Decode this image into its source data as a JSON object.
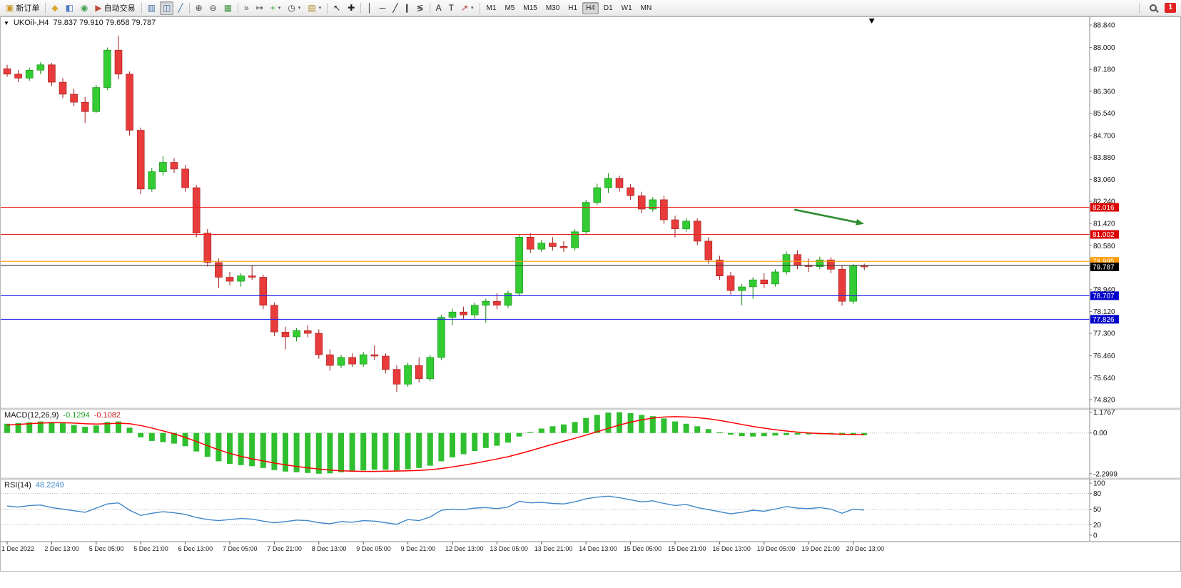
{
  "toolbar": {
    "notification_badge": "1",
    "left_items": [
      {
        "type": "button",
        "name": "new-order-button",
        "icon_name": "new-order-icon",
        "glyph": "▣",
        "glyph_color": "#c9972b",
        "label": "新订单"
      },
      {
        "type": "sep"
      },
      {
        "type": "button",
        "name": "market-watch-button",
        "icon_name": "market-watch-icon",
        "glyph": "◆",
        "glyph_color": "#d9a92f"
      },
      {
        "type": "button",
        "name": "data-window-button",
        "icon_name": "data-window-icon",
        "glyph": "◧",
        "glyph_color": "#4d79bd"
      },
      {
        "type": "button",
        "name": "navigator-button",
        "icon_name": "navigator-icon",
        "glyph": "◉",
        "glyph_color": "#3e9e4f"
      },
      {
        "type": "button",
        "name": "auto-trading-button",
        "icon_name": "auto-trading-icon",
        "glyph": "▶",
        "glyph_color": "#bf4a3e",
        "label": "自动交易"
      },
      {
        "type": "sep"
      },
      {
        "type": "button",
        "name": "bar-chart-button",
        "icon_name": "bar-chart-icon",
        "glyph": "▥",
        "glyph_color": "#3a6ea5"
      },
      {
        "type": "button",
        "name": "candlestick-chart-button",
        "icon_name": "candlestick-icon",
        "glyph": "◫",
        "glyph_color": "#3a6ea5",
        "active": true
      },
      {
        "type": "button",
        "name": "line-chart-button",
        "icon_name": "line-chart-icon",
        "glyph": "╱",
        "glyph_color": "#3a6ea5"
      },
      {
        "type": "sep"
      },
      {
        "type": "button",
        "name": "zoom-in-button",
        "icon_name": "zoom-in-icon",
        "glyph": "⊕",
        "glyph_color": "#444444"
      },
      {
        "type": "button",
        "name": "zoom-out-button",
        "icon_name": "zoom-out-icon",
        "glyph": "⊖",
        "glyph_color": "#444444"
      },
      {
        "type": "button",
        "name": "tile-windows-button",
        "icon_name": "tile-windows-icon",
        "glyph": "▦",
        "glyph_color": "#3f8f3f"
      },
      {
        "type": "sep"
      },
      {
        "type": "button",
        "name": "auto-scroll-button",
        "icon_name": "auto-scroll-icon",
        "glyph": "»",
        "glyph_color": "#444444"
      },
      {
        "type": "button",
        "name": "chart-shift-button",
        "icon_name": "chart-shift-icon",
        "glyph": "↦",
        "glyph_color": "#444444"
      },
      {
        "type": "button",
        "name": "indicators-button",
        "icon_name": "indicators-icon",
        "glyph": "+",
        "glyph_color": "#2f9e2f",
        "chevron": true
      },
      {
        "type": "button",
        "name": "periods-button",
        "icon_name": "periods-icon",
        "glyph": "◷",
        "glyph_color": "#444444",
        "chevron": true
      },
      {
        "type": "button",
        "name": "templates-button",
        "icon_name": "templates-icon",
        "glyph": "▤",
        "glyph_color": "#b58926",
        "chevron": true
      },
      {
        "type": "sep"
      },
      {
        "type": "button",
        "name": "cursor-button",
        "icon_name": "cursor-icon",
        "glyph": "↖",
        "glyph_color": "#222222"
      },
      {
        "type": "button",
        "name": "crosshair-button",
        "icon_name": "crosshair-icon",
        "glyph": "✚",
        "glyph_color": "#222222"
      },
      {
        "type": "sep"
      },
      {
        "type": "button",
        "name": "vertical-line-button",
        "icon_name": "vertical-line-icon",
        "glyph": "│",
        "glyph_color": "#222222"
      },
      {
        "type": "button",
        "name": "horizontal-line-button",
        "icon_name": "horizontal-line-icon",
        "glyph": "─",
        "glyph_color": "#222222"
      },
      {
        "type": "button",
        "name": "trendline-button",
        "icon_name": "trendline-icon",
        "glyph": "╱",
        "glyph_color": "#222222"
      },
      {
        "type": "button",
        "name": "channel-button",
        "icon_name": "channel-icon",
        "glyph": "∥",
        "glyph_color": "#222222"
      },
      {
        "type": "button",
        "name": "fibonacci-button",
        "icon_name": "fibonacci-icon",
        "glyph": "≶",
        "glyph_color": "#222222"
      },
      {
        "type": "sep"
      },
      {
        "type": "button",
        "name": "text-button",
        "icon_name": "text-icon",
        "glyph": "A",
        "glyph_color": "#222222"
      },
      {
        "type": "button",
        "name": "text-label-button",
        "icon_name": "text-label-icon",
        "glyph": "T",
        "glyph_color": "#222222"
      },
      {
        "type": "button",
        "name": "arrows-button",
        "icon_name": "arrows-icon",
        "glyph": "↗",
        "glyph_color": "#b03030",
        "chevron": true
      },
      {
        "type": "sep"
      }
    ],
    "timeframes": [
      {
        "label": "M1"
      },
      {
        "label": "M5"
      },
      {
        "label": "M15"
      },
      {
        "label": "M30"
      },
      {
        "label": "H1"
      },
      {
        "label": "H4",
        "active": true
      },
      {
        "label": "D1"
      },
      {
        "label": "W1"
      },
      {
        "label": "MN"
      }
    ]
  },
  "chart_data": [
    {
      "type": "candlestick",
      "title": "UKOil-,H4",
      "ohlc_text": "79.837 79.910 79.658 79.787",
      "ylim": [
        74.82,
        88.84
      ],
      "y_ticks": [
        "88.840",
        "88.000",
        "87.180",
        "86.360",
        "85.540",
        "84.700",
        "83.880",
        "83.060",
        "82.240",
        "81.420",
        "80.580",
        "79.760",
        "78.940",
        "78.120",
        "77.300",
        "76.460",
        "75.640",
        "74.820"
      ],
      "x_labels": [
        "1 Dec 2022",
        "2 Dec 13:00",
        "5 Dec 05:00",
        "5 Dec 21:00",
        "6 Dec 13:00",
        "7 Dec 05:00",
        "7 Dec 21:00",
        "8 Dec 13:00",
        "9 Dec 05:00",
        "9 Dec 21:00",
        "12 Dec 13:00",
        "13 Dec 05:00",
        "13 Dec 21:00",
        "14 Dec 13:00",
        "15 Dec 05:00",
        "15 Dec 21:00",
        "16 Dec 13:00",
        "19 Dec 05:00",
        "19 Dec 21:00",
        "20 Dec 13:00"
      ],
      "candles": [
        [
          87.2,
          87.35,
          86.9,
          87.0
        ],
        [
          87.0,
          87.15,
          86.7,
          86.85
        ],
        [
          86.85,
          87.25,
          86.75,
          87.15
        ],
        [
          87.15,
          87.45,
          87.0,
          87.35
        ],
        [
          87.35,
          87.42,
          86.55,
          86.7
        ],
        [
          86.7,
          86.85,
          86.1,
          86.25
        ],
        [
          86.25,
          86.45,
          85.8,
          85.95
        ],
        [
          85.95,
          86.15,
          85.18,
          85.6
        ],
        [
          85.6,
          86.6,
          85.55,
          86.5
        ],
        [
          86.5,
          88.0,
          86.4,
          87.9
        ],
        [
          87.9,
          88.44,
          86.8,
          87.0
        ],
        [
          87.0,
          87.1,
          84.7,
          84.9
        ],
        [
          84.9,
          85.0,
          82.51,
          82.7
        ],
        [
          82.7,
          83.5,
          82.6,
          83.35
        ],
        [
          83.35,
          83.93,
          83.2,
          83.7
        ],
        [
          83.7,
          83.85,
          83.3,
          83.45
        ],
        [
          83.45,
          83.6,
          82.6,
          82.75
        ],
        [
          82.75,
          82.85,
          80.9,
          81.05
        ],
        [
          81.05,
          81.2,
          79.8,
          79.95
        ],
        [
          79.95,
          80.1,
          79.0,
          79.4
        ],
        [
          79.4,
          79.6,
          79.1,
          79.25
        ],
        [
          79.25,
          79.55,
          79.05,
          79.45
        ],
        [
          79.45,
          79.85,
          79.3,
          79.4
        ],
        [
          79.4,
          79.5,
          78.2,
          78.35
        ],
        [
          78.35,
          78.45,
          77.2,
          77.35
        ],
        [
          77.35,
          77.55,
          76.7,
          77.17
        ],
        [
          77.17,
          77.5,
          77.0,
          77.4
        ],
        [
          77.4,
          77.6,
          77.15,
          77.3
        ],
        [
          77.3,
          77.45,
          76.35,
          76.5
        ],
        [
          76.5,
          76.7,
          75.9,
          76.1
        ],
        [
          76.1,
          76.5,
          76.0,
          76.4
        ],
        [
          76.4,
          76.55,
          76.05,
          76.15
        ],
        [
          76.15,
          76.6,
          76.05,
          76.5
        ],
        [
          76.5,
          76.85,
          76.3,
          76.45
        ],
        [
          76.45,
          76.55,
          75.8,
          75.95
        ],
        [
          75.95,
          76.1,
          75.11,
          75.4
        ],
        [
          75.4,
          76.2,
          75.3,
          76.1
        ],
        [
          76.1,
          76.4,
          75.46,
          75.6
        ],
        [
          75.6,
          76.5,
          75.5,
          76.4
        ],
        [
          76.4,
          78.0,
          76.3,
          77.9
        ],
        [
          77.9,
          78.22,
          77.6,
          78.1
        ],
        [
          78.1,
          78.3,
          77.8,
          77.99
        ],
        [
          77.99,
          78.45,
          77.85,
          78.35
        ],
        [
          78.35,
          78.6,
          77.7,
          78.5
        ],
        [
          78.5,
          78.8,
          78.2,
          78.35
        ],
        [
          78.35,
          78.9,
          78.25,
          78.8
        ],
        [
          78.8,
          81.0,
          78.7,
          80.9
        ],
        [
          80.9,
          81.05,
          80.3,
          80.45
        ],
        [
          80.45,
          80.8,
          80.35,
          80.68
        ],
        [
          80.68,
          80.9,
          80.4,
          80.55
        ],
        [
          80.55,
          80.75,
          80.35,
          80.5
        ],
        [
          80.5,
          81.2,
          80.4,
          81.1
        ],
        [
          81.1,
          82.3,
          81.0,
          82.2
        ],
        [
          82.2,
          82.9,
          82.1,
          82.75
        ],
        [
          82.75,
          83.29,
          82.55,
          83.1
        ],
        [
          83.1,
          83.2,
          82.6,
          82.75
        ],
        [
          82.75,
          82.89,
          82.3,
          82.45
        ],
        [
          82.45,
          82.6,
          81.8,
          81.95
        ],
        [
          81.95,
          82.4,
          81.85,
          82.3
        ],
        [
          82.3,
          82.45,
          81.4,
          81.55
        ],
        [
          81.55,
          81.7,
          80.89,
          81.21
        ],
        [
          81.21,
          81.61,
          81.1,
          81.5
        ],
        [
          81.5,
          81.6,
          80.6,
          80.75
        ],
        [
          80.75,
          80.9,
          79.9,
          80.05
        ],
        [
          80.05,
          80.2,
          79.3,
          79.45
        ],
        [
          79.45,
          79.6,
          78.75,
          78.9
        ],
        [
          78.9,
          79.15,
          78.35,
          79.04
        ],
        [
          79.04,
          79.4,
          78.6,
          79.3
        ],
        [
          79.3,
          79.55,
          79.0,
          79.15
        ],
        [
          79.15,
          79.7,
          79.05,
          79.6
        ],
        [
          79.6,
          80.37,
          79.5,
          80.25
        ],
        [
          80.25,
          80.4,
          79.7,
          79.85
        ],
        [
          79.85,
          80.1,
          79.6,
          79.8
        ],
        [
          79.8,
          80.17,
          79.7,
          80.05
        ],
        [
          80.05,
          80.15,
          79.55,
          79.7
        ],
        [
          79.7,
          79.85,
          78.34,
          78.5
        ],
        [
          78.5,
          79.9,
          78.4,
          79.84
        ],
        [
          79.837,
          79.91,
          79.658,
          79.787
        ]
      ],
      "colors": {
        "bull": "#33cc33",
        "bull_border": "#0d8a0d",
        "bear": "#e83b3b",
        "bear_border": "#9e1b1b"
      },
      "hlines": [
        {
          "price": 82.016,
          "color": "#f02020",
          "label": "82.016",
          "label_bg": "#dd0000"
        },
        {
          "price": 81.002,
          "color": "#f02020",
          "label": "81.002",
          "label_bg": "#dd0000"
        },
        {
          "price": 79.995,
          "color": "#ff9900",
          "label": "79.995",
          "label_bg": "#ff9900"
        },
        {
          "price": 79.837,
          "color": "#3a3a3a",
          "label": "",
          "label_bg": ""
        },
        {
          "price": 78.707,
          "color": "#2222ee",
          "label": "78.707",
          "label_bg": "#0000cc"
        },
        {
          "price": 77.826,
          "color": "#2222ee",
          "label": "77.826",
          "label_bg": "#0000cc"
        }
      ],
      "current_price": {
        "price": 79.787,
        "label": "79.787",
        "label_bg": "#000000"
      },
      "arrow": {
        "x_frac_start": 0.729,
        "price_start": 81.93,
        "x_frac_end": 0.793,
        "price_end": 81.4,
        "color": "#2e8b2e"
      },
      "series_end_marker_frac": 0.8
    },
    {
      "type": "bar",
      "name": "MACD(12,26,9)",
      "value_main": "-0.1294",
      "value_signal": "-0.1082",
      "y_ticks": [
        "1.1767",
        "0.00",
        "-2.2999"
      ],
      "ylim": [
        -2.2999,
        1.1767
      ],
      "histogram": [
        0.52,
        0.56,
        0.6,
        0.65,
        0.62,
        0.55,
        0.45,
        0.35,
        0.42,
        0.62,
        0.65,
        0.3,
        -0.25,
        -0.45,
        -0.52,
        -0.6,
        -0.75,
        -1.05,
        -1.35,
        -1.6,
        -1.75,
        -1.82,
        -1.88,
        -1.98,
        -2.1,
        -2.18,
        -2.22,
        -2.26,
        -2.3,
        -2.28,
        -2.22,
        -2.18,
        -2.12,
        -2.08,
        -2.08,
        -2.12,
        -2.05,
        -1.98,
        -1.85,
        -1.6,
        -1.38,
        -1.2,
        -1.02,
        -0.85,
        -0.72,
        -0.55,
        -0.2,
        0.05,
        0.25,
        0.38,
        0.48,
        0.62,
        0.85,
        1.02,
        1.15,
        1.1767,
        1.12,
        1.02,
        0.95,
        0.82,
        0.65,
        0.52,
        0.38,
        0.22,
        0.05,
        -0.1,
        -0.18,
        -0.2,
        -0.18,
        -0.15,
        -0.12,
        -0.1,
        -0.08,
        -0.07,
        -0.08,
        -0.12,
        -0.13,
        -0.1294
      ],
      "signal": [
        0.45,
        0.48,
        0.52,
        0.56,
        0.58,
        0.58,
        0.56,
        0.52,
        0.5,
        0.52,
        0.55,
        0.52,
        0.42,
        0.28,
        0.12,
        -0.05,
        -0.25,
        -0.48,
        -0.72,
        -0.95,
        -1.15,
        -1.32,
        -1.46,
        -1.58,
        -1.7,
        -1.8,
        -1.89,
        -1.97,
        -2.04,
        -2.1,
        -2.14,
        -2.16,
        -2.17,
        -2.17,
        -2.16,
        -2.15,
        -2.14,
        -2.12,
        -2.08,
        -2.01,
        -1.92,
        -1.82,
        -1.71,
        -1.59,
        -1.47,
        -1.34,
        -1.18,
        -1.0,
        -0.82,
        -0.64,
        -0.47,
        -0.3,
        -0.12,
        0.07,
        0.26,
        0.45,
        0.61,
        0.74,
        0.84,
        0.9,
        0.92,
        0.91,
        0.87,
        0.8,
        0.71,
        0.6,
        0.48,
        0.37,
        0.27,
        0.18,
        0.11,
        0.05,
        0.0,
        -0.03,
        -0.05,
        -0.07,
        -0.09,
        -0.1082
      ],
      "colors": {
        "histogram": "#2fbf2f",
        "signal": "#ff0000"
      }
    },
    {
      "type": "line",
      "name": "RSI(14)",
      "value": "48.2249",
      "y_ticks": [
        "100",
        "80",
        "50",
        "20",
        "0"
      ],
      "levels": [
        80,
        50,
        20
      ],
      "ylim": [
        0,
        100
      ],
      "values": [
        56,
        54,
        57,
        58,
        53,
        50,
        47,
        44,
        52,
        60,
        62,
        48,
        38,
        42,
        45,
        43,
        40,
        34,
        30,
        28,
        30,
        32,
        31,
        27,
        24,
        26,
        29,
        28,
        24,
        22,
        26,
        25,
        28,
        27,
        24,
        21,
        30,
        28,
        35,
        48,
        50,
        49,
        52,
        53,
        51,
        54,
        65,
        62,
        63,
        61,
        60,
        64,
        70,
        73,
        75,
        72,
        68,
        64,
        66,
        61,
        57,
        59,
        53,
        49,
        45,
        41,
        44,
        48,
        46,
        50,
        55,
        52,
        51,
        53,
        50,
        42,
        50,
        48.2249
      ],
      "colors": {
        "line": "#3f87c9"
      }
    }
  ]
}
